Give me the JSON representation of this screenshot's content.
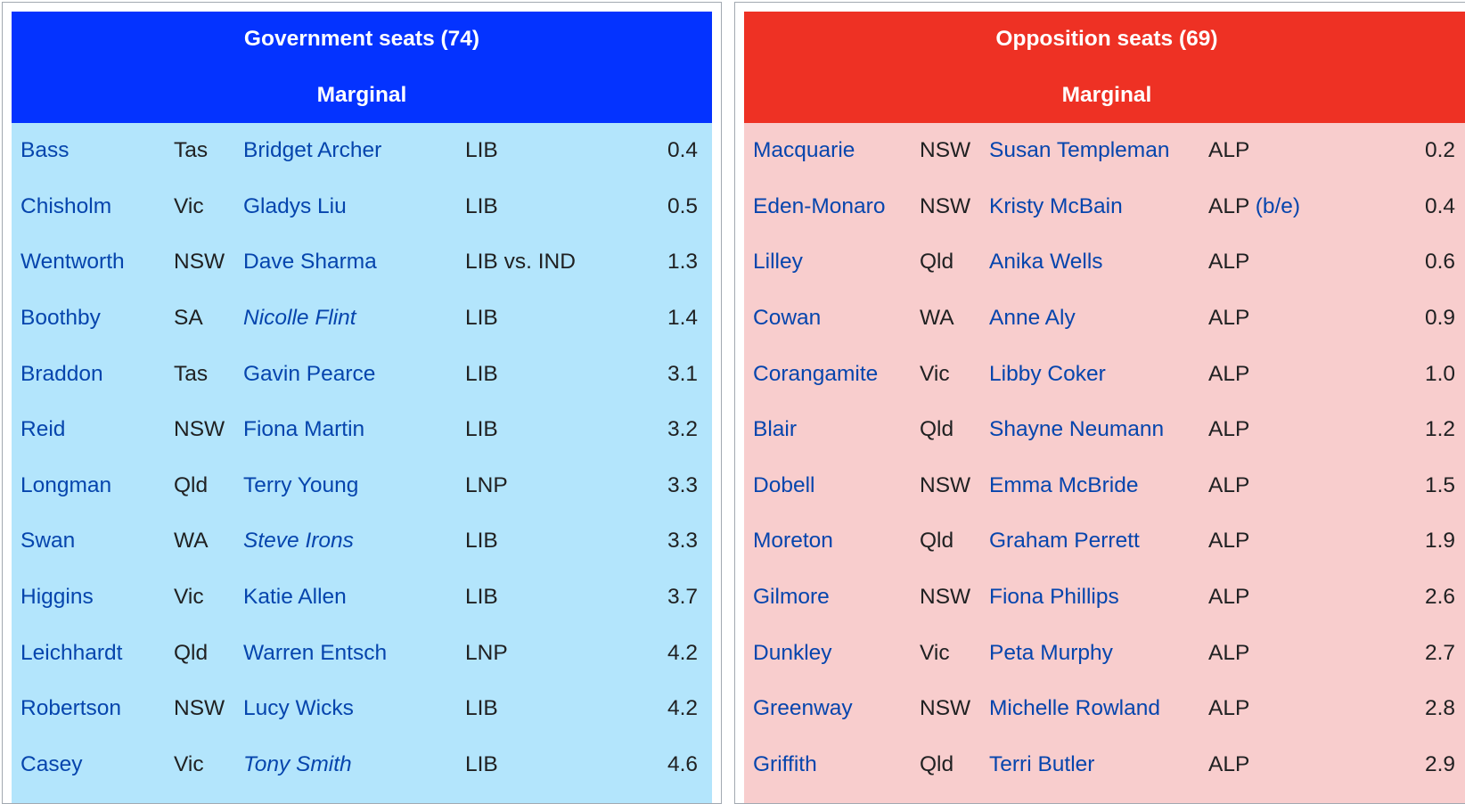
{
  "government": {
    "title": "Government seats (74)",
    "subtitle": "Marginal",
    "rows": [
      {
        "seat": "Bass",
        "state": "Tas",
        "member": "Bridget Archer",
        "party": "LIB",
        "party_note": "",
        "margin": "0.4",
        "italic": false
      },
      {
        "seat": "Chisholm",
        "state": "Vic",
        "member": "Gladys Liu",
        "party": "LIB",
        "party_note": "",
        "margin": "0.5",
        "italic": false
      },
      {
        "seat": "Wentworth",
        "state": "NSW",
        "member": "Dave Sharma",
        "party": "LIB vs. IND",
        "party_note": "",
        "margin": "1.3",
        "italic": false
      },
      {
        "seat": "Boothby",
        "state": "SA",
        "member": "Nicolle Flint",
        "party": "LIB",
        "party_note": "",
        "margin": "1.4",
        "italic": true
      },
      {
        "seat": "Braddon",
        "state": "Tas",
        "member": "Gavin Pearce",
        "party": "LIB",
        "party_note": "",
        "margin": "3.1",
        "italic": false
      },
      {
        "seat": "Reid",
        "state": "NSW",
        "member": "Fiona Martin",
        "party": "LIB",
        "party_note": "",
        "margin": "3.2",
        "italic": false
      },
      {
        "seat": "Longman",
        "state": "Qld",
        "member": "Terry Young",
        "party": "LNP",
        "party_note": "",
        "margin": "3.3",
        "italic": false
      },
      {
        "seat": "Swan",
        "state": "WA",
        "member": "Steve Irons",
        "party": "LIB",
        "party_note": "",
        "margin": "3.3",
        "italic": true
      },
      {
        "seat": "Higgins",
        "state": "Vic",
        "member": "Katie Allen",
        "party": "LIB",
        "party_note": "",
        "margin": "3.7",
        "italic": false
      },
      {
        "seat": "Leichhardt",
        "state": "Qld",
        "member": "Warren Entsch",
        "party": "LNP",
        "party_note": "",
        "margin": "4.2",
        "italic": false
      },
      {
        "seat": "Robertson",
        "state": "NSW",
        "member": "Lucy Wicks",
        "party": "LIB",
        "party_note": "",
        "margin": "4.2",
        "italic": false
      },
      {
        "seat": "Casey",
        "state": "Vic",
        "member": "Tony Smith",
        "party": "LIB",
        "party_note": "",
        "margin": "4.6",
        "italic": true
      }
    ]
  },
  "opposition": {
    "title": "Opposition seats (69)",
    "subtitle": "Marginal",
    "rows": [
      {
        "seat": "Macquarie",
        "state": "NSW",
        "member": "Susan Templeman",
        "party": "ALP",
        "party_note": "",
        "margin": "0.2",
        "italic": false
      },
      {
        "seat": "Eden-Monaro",
        "state": "NSW",
        "member": "Kristy McBain",
        "party": "ALP",
        "party_note": "(b/e)",
        "margin": "0.4",
        "italic": false
      },
      {
        "seat": "Lilley",
        "state": "Qld",
        "member": "Anika Wells",
        "party": "ALP",
        "party_note": "",
        "margin": "0.6",
        "italic": false
      },
      {
        "seat": "Cowan",
        "state": "WA",
        "member": "Anne Aly",
        "party": "ALP",
        "party_note": "",
        "margin": "0.9",
        "italic": false
      },
      {
        "seat": "Corangamite",
        "state": "Vic",
        "member": "Libby Coker",
        "party": "ALP",
        "party_note": "",
        "margin": "1.0",
        "italic": false
      },
      {
        "seat": "Blair",
        "state": "Qld",
        "member": "Shayne Neumann",
        "party": "ALP",
        "party_note": "",
        "margin": "1.2",
        "italic": false
      },
      {
        "seat": "Dobell",
        "state": "NSW",
        "member": "Emma McBride",
        "party": "ALP",
        "party_note": "",
        "margin": "1.5",
        "italic": false
      },
      {
        "seat": "Moreton",
        "state": "Qld",
        "member": "Graham Perrett",
        "party": "ALP",
        "party_note": "",
        "margin": "1.9",
        "italic": false
      },
      {
        "seat": "Gilmore",
        "state": "NSW",
        "member": "Fiona Phillips",
        "party": "ALP",
        "party_note": "",
        "margin": "2.6",
        "italic": false
      },
      {
        "seat": "Dunkley",
        "state": "Vic",
        "member": "Peta Murphy",
        "party": "ALP",
        "party_note": "",
        "margin": "2.7",
        "italic": false
      },
      {
        "seat": "Greenway",
        "state": "NSW",
        "member": "Michelle Rowland",
        "party": "ALP",
        "party_note": "",
        "margin": "2.8",
        "italic": false
      },
      {
        "seat": "Griffith",
        "state": "Qld",
        "member": "Terri Butler",
        "party": "ALP",
        "party_note": "",
        "margin": "2.9",
        "italic": false
      }
    ]
  }
}
